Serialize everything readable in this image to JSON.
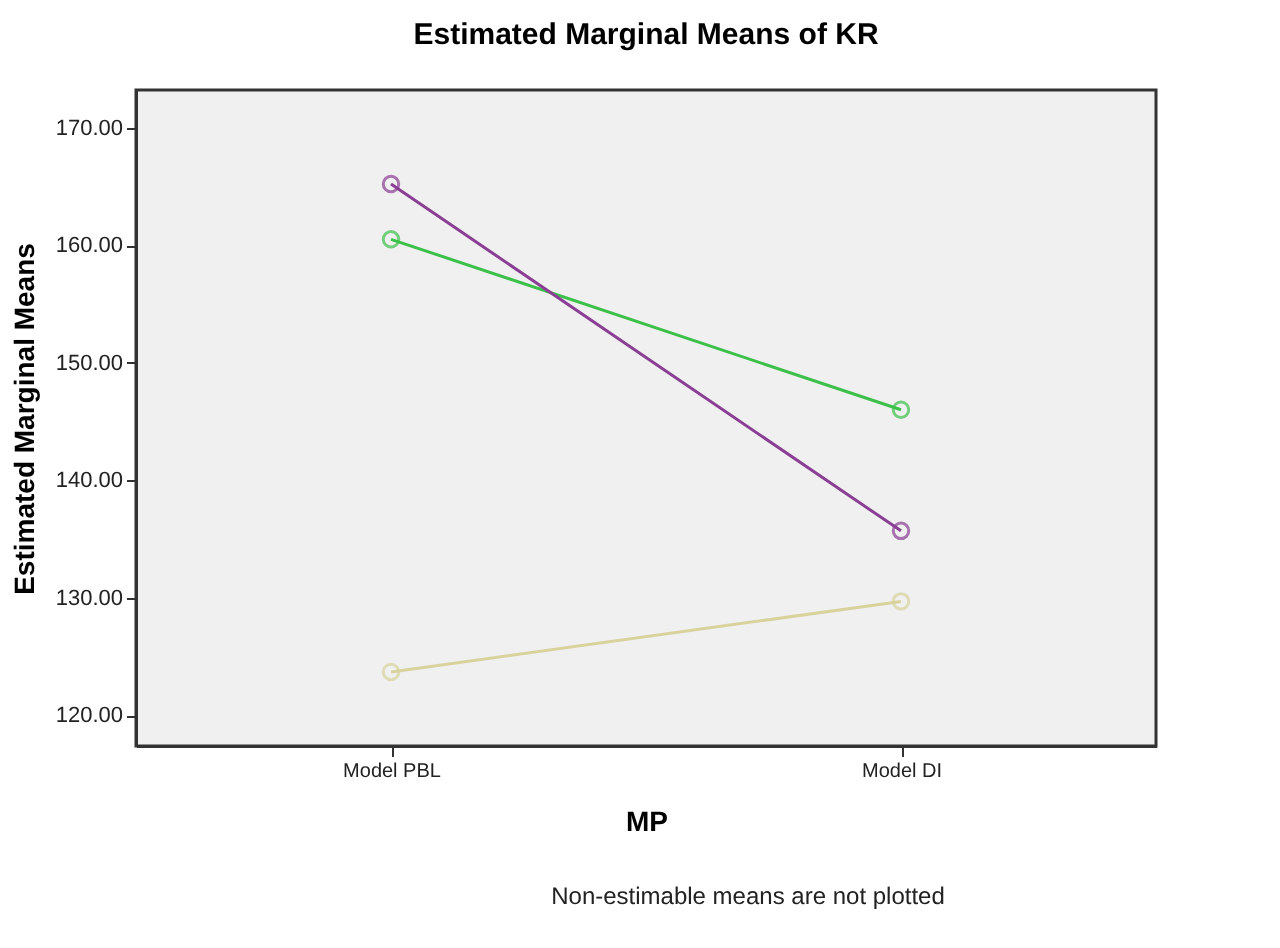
{
  "chart_data": {
    "type": "line",
    "title": "Estimated Marginal Means of KR",
    "xlabel": "MP",
    "ylabel": "Estimated Marginal Means",
    "categories": [
      "Model PBL",
      "Model DI"
    ],
    "series": [
      {
        "color": "#3cc04a",
        "values": [
          160.5,
          146.0
        ]
      },
      {
        "color": "#8a3e94",
        "values": [
          165.2,
          135.7
        ]
      },
      {
        "color": "#d8d39c",
        "values": [
          123.7,
          129.7
        ]
      }
    ],
    "ylim": [
      117.4,
      173.2
    ],
    "yticks": [
      {
        "value": 120,
        "label": "120.00"
      },
      {
        "value": 130,
        "label": "130.00"
      },
      {
        "value": 140,
        "label": "140.00"
      },
      {
        "value": 150,
        "label": "150.00"
      },
      {
        "value": 160,
        "label": "160.00"
      },
      {
        "value": 170,
        "label": "170.00"
      }
    ],
    "grid": false,
    "legend": false,
    "marker": "circle",
    "line_style": "solid",
    "annotations": [
      "Non-estimable means are not plotted"
    ]
  }
}
